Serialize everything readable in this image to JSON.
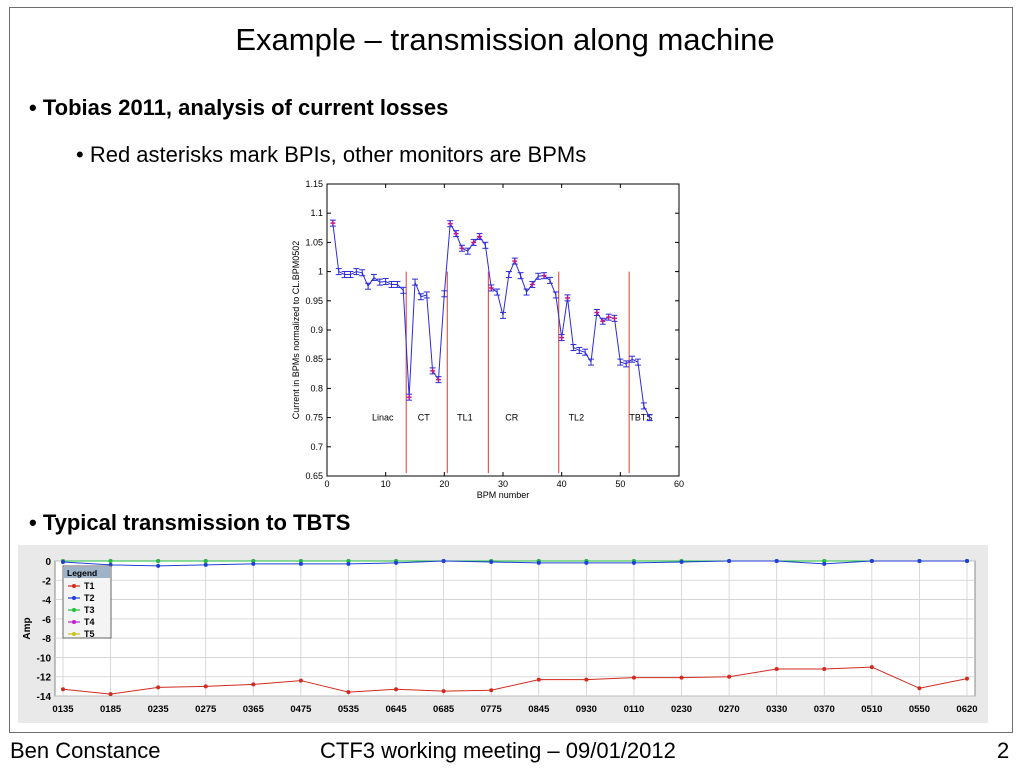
{
  "slide": {
    "title": "Example – transmission along machine",
    "bullets": [
      "Tobias 2011, analysis of current losses",
      "Red asterisks mark BPIs, other monitors are BPMs",
      "Typical transmission to TBTS"
    ],
    "footer": {
      "left": "Ben Constance",
      "center": "CTF3 working meeting – 09/01/2012",
      "page": "2"
    }
  },
  "colors": {
    "series_line": "#2b2bdc",
    "bpi_marker": "#c2188a",
    "section_line": "#e03b2e",
    "t1": "#d12a1f",
    "t2": "#1f3fd6",
    "t3": "#1fbf3f",
    "t4": "#c21fd1",
    "t5": "#c9c21f"
  },
  "chart_data": [
    {
      "type": "line",
      "xlabel": "BPM number",
      "ylabel": "Current in BPMs normalized to CL.BPM0502",
      "xlim": [
        0,
        60
      ],
      "ylim": [
        0.65,
        1.15
      ],
      "xticks": [
        "0",
        "10",
        "20",
        "30",
        "40",
        "50",
        "60"
      ],
      "yticks": [
        "0.65",
        "0.7",
        "0.75",
        "0.8",
        "0.85",
        "0.9",
        "0.95",
        "1",
        "1.05",
        "1.1",
        "1.15"
      ],
      "grid": false,
      "sections": [
        {
          "name": "Linac",
          "x": 9.5
        },
        {
          "name": "CT",
          "x": 16.5
        },
        {
          "name": "TL1",
          "x": 23.5
        },
        {
          "name": "CR",
          "x": 31.5
        },
        {
          "name": "TL2",
          "x": 42.5
        },
        {
          "name": "TBTS",
          "x": 53.5
        }
      ],
      "section_boundaries": [
        13.5,
        20.5,
        27.5,
        39.5,
        51.5
      ],
      "series": [
        {
          "x": [
            1,
            2,
            3,
            4,
            5,
            6,
            7,
            8,
            9,
            10,
            11,
            12,
            13,
            14,
            15,
            16,
            17,
            18,
            19,
            20,
            21,
            22,
            23,
            24,
            25,
            26,
            27,
            28,
            29,
            30,
            31,
            32,
            33,
            34,
            35,
            36,
            37,
            38,
            39,
            40,
            41,
            42,
            43,
            44,
            45,
            46,
            47,
            48,
            49,
            50,
            51,
            52,
            53,
            54,
            55
          ],
          "y": [
            1.083,
            1.0,
            0.995,
            0.995,
            1.0,
            0.998,
            0.975,
            0.99,
            0.982,
            0.983,
            0.978,
            0.978,
            0.968,
            0.785,
            0.982,
            0.957,
            0.96,
            0.83,
            0.815,
            0.962,
            1.082,
            1.065,
            1.04,
            1.035,
            1.05,
            1.06,
            1.045,
            0.972,
            0.965,
            0.925,
            0.995,
            1.018,
            0.993,
            0.965,
            0.978,
            0.992,
            0.993,
            0.985,
            0.96,
            0.887,
            0.955,
            0.87,
            0.865,
            0.862,
            0.845,
            0.93,
            0.915,
            0.922,
            0.92,
            0.845,
            0.842,
            0.85,
            0.845,
            0.77,
            0.75
          ],
          "bpi": [
            1,
            14,
            18,
            19,
            21,
            22,
            23,
            25,
            26,
            28,
            32,
            35,
            37,
            40,
            41,
            46,
            47,
            48,
            49
          ]
        }
      ]
    },
    {
      "type": "line",
      "ylabel": "Amp",
      "ylim": [
        -14,
        0
      ],
      "yticks": [
        "0",
        "-2",
        "-4",
        "-6",
        "-8",
        "-10",
        "-12",
        "-14"
      ],
      "categories": [
        "0135",
        "0185",
        "0235",
        "0275",
        "0365",
        "0475",
        "0535",
        "0645",
        "0685",
        "0775",
        "0845",
        "0930",
        "0110",
        "0230",
        "0270",
        "0330",
        "0370",
        "0510",
        "0550",
        "0620"
      ],
      "grid": true,
      "legend": {
        "title": "Legend",
        "position": "top-left"
      },
      "series": [
        {
          "name": "T1",
          "values": [
            -13.3,
            -13.8,
            -13.1,
            -13.0,
            -12.8,
            -12.4,
            -13.6,
            -13.3,
            -13.5,
            -13.4,
            -12.3,
            -12.3,
            -12.1,
            -12.1,
            -12.0,
            -11.2,
            -11.2,
            -11.0,
            -13.2,
            -12.2
          ]
        },
        {
          "name": "T2",
          "values": [
            -0.1,
            -0.4,
            -0.5,
            -0.4,
            -0.3,
            -0.3,
            -0.3,
            -0.2,
            0.0,
            -0.1,
            -0.2,
            -0.2,
            -0.2,
            -0.1,
            0.0,
            0.0,
            -0.3,
            0.0,
            0.0,
            0.0
          ]
        },
        {
          "name": "T3",
          "values": [
            0,
            0,
            0,
            0,
            0,
            0,
            0,
            0,
            0,
            0,
            0,
            0,
            0,
            0,
            0,
            0,
            0,
            0,
            0,
            0
          ]
        },
        {
          "name": "T4",
          "values": [
            0,
            0,
            0,
            0,
            0,
            0,
            0,
            0,
            0,
            0,
            0,
            0,
            0,
            0,
            0,
            0,
            0,
            0,
            0,
            0
          ]
        },
        {
          "name": "T5",
          "values": [
            0,
            0,
            0,
            0,
            0,
            0,
            0,
            0,
            0,
            0,
            0,
            0,
            0,
            0,
            0,
            0,
            0,
            0,
            0,
            0
          ]
        }
      ]
    }
  ]
}
